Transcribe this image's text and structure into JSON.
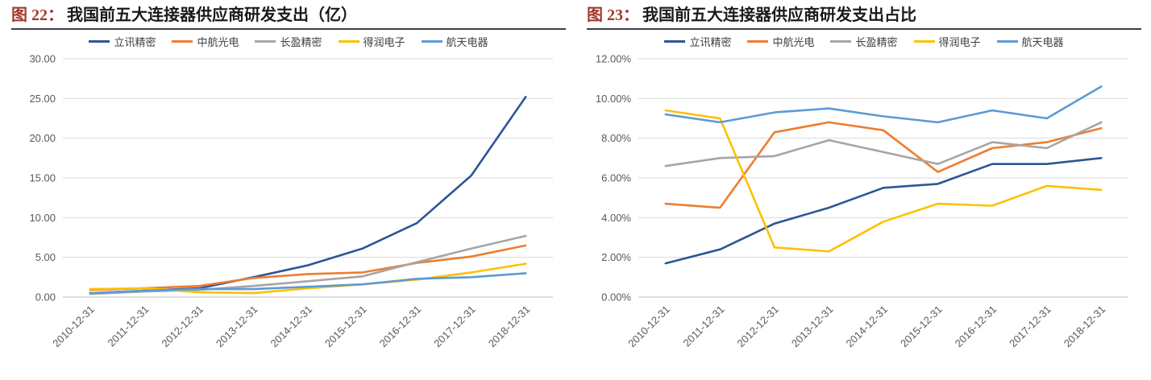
{
  "styles": {
    "grid_color": "#D9D9D9",
    "axis_color": "#BFBFBF",
    "tick_color": "#595959",
    "title_label_color": "#A0392C",
    "rule_color": "#3A3F46"
  },
  "chart_data": [
    {
      "type": "line",
      "fig_label": "图 22：",
      "title": "我国前五大连接器供应商研发支出（亿）",
      "categories": [
        "2010-12-31",
        "2011-12-31",
        "2012-12-31",
        "2013-12-31",
        "2014-12-31",
        "2015-12-31",
        "2016-12-31",
        "2017-12-31",
        "2018-12-31"
      ],
      "ylim": [
        0,
        30
      ],
      "ystep": 5,
      "percent": false,
      "legend_position": "top",
      "grid": true,
      "series": [
        {
          "name": "立讯精密",
          "color": "#2E5596",
          "values": [
            0.5,
            0.8,
            1.1,
            2.5,
            4.0,
            6.1,
            9.3,
            15.3,
            25.2
          ]
        },
        {
          "name": "中航光电",
          "color": "#ED7D31",
          "values": [
            0.9,
            1.1,
            1.4,
            2.4,
            2.9,
            3.1,
            4.3,
            5.1,
            6.5
          ]
        },
        {
          "name": "长盈精密",
          "color": "#A5A5A5",
          "values": [
            0.4,
            0.7,
            0.9,
            1.4,
            2.0,
            2.6,
            4.4,
            6.1,
            7.7
          ]
        },
        {
          "name": "得润电子",
          "color": "#FFC000",
          "values": [
            1.0,
            1.1,
            0.6,
            0.5,
            1.1,
            1.6,
            2.2,
            3.1,
            4.2
          ]
        },
        {
          "name": "航天电器",
          "color": "#5B9BD5",
          "values": [
            0.5,
            0.8,
            1.0,
            1.0,
            1.3,
            1.6,
            2.3,
            2.5,
            3.0
          ]
        }
      ]
    },
    {
      "type": "line",
      "fig_label": "图 23：",
      "title": "我国前五大连接器供应商研发支出占比",
      "categories": [
        "2010-12-31",
        "2011-12-31",
        "2012-12-31",
        "2013-12-31",
        "2014-12-31",
        "2015-12-31",
        "2016-12-31",
        "2017-12-31",
        "2018-12-31"
      ],
      "ylim": [
        0,
        12
      ],
      "ystep": 2,
      "percent": true,
      "legend_position": "top",
      "grid": true,
      "series": [
        {
          "name": "立讯精密",
          "color": "#2E5596",
          "values": [
            1.7,
            2.4,
            3.7,
            4.5,
            5.5,
            5.7,
            6.7,
            6.7,
            7.0
          ]
        },
        {
          "name": "中航光电",
          "color": "#ED7D31",
          "values": [
            4.7,
            4.5,
            8.3,
            8.8,
            8.4,
            6.3,
            7.5,
            7.8,
            8.5
          ]
        },
        {
          "name": "长盈精密",
          "color": "#A5A5A5",
          "values": [
            6.6,
            7.0,
            7.1,
            7.9,
            7.3,
            6.7,
            7.8,
            7.5,
            8.8
          ]
        },
        {
          "name": "得润电子",
          "color": "#FFC000",
          "values": [
            9.4,
            9.0,
            2.5,
            2.3,
            3.8,
            4.7,
            4.6,
            5.6,
            5.4
          ]
        },
        {
          "name": "航天电器",
          "color": "#5B9BD5",
          "values": [
            9.2,
            8.8,
            9.3,
            9.5,
            9.1,
            8.8,
            9.4,
            9.0,
            10.6
          ]
        }
      ]
    }
  ]
}
